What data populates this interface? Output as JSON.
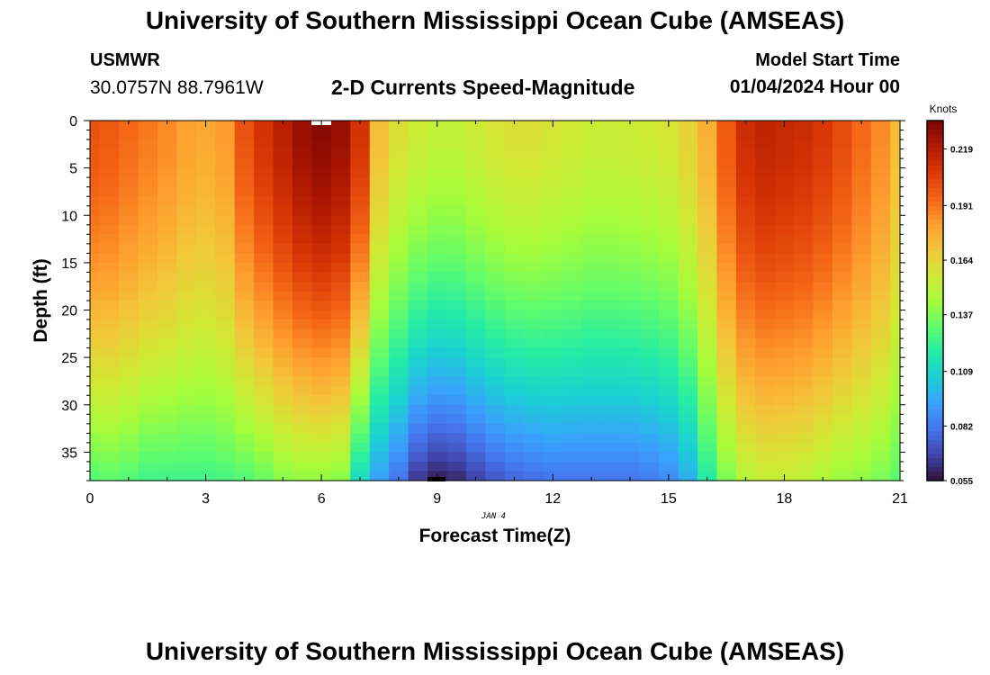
{
  "page": {
    "title": "University of Southern Mississippi Ocean Cube (AMSEAS)",
    "footer_title": "University of Southern Mississippi Ocean Cube (AMSEAS)",
    "station_id": "USMWR",
    "coordinates": "30.0757N  88.7961W",
    "subtitle": "2-D Currents Speed-Magnitude",
    "model_start_label": "Model Start Time",
    "model_start_value": "01/04/2024 Hour 00",
    "date_marker": "JAN 4"
  },
  "chart_data": {
    "type": "heatmap",
    "title": "2-D Currents Speed-Magnitude",
    "xlabel": "Forecast Time(Z)",
    "ylabel": "Depth (ft)",
    "xlim": [
      0,
      21
    ],
    "ylim": [
      0,
      38
    ],
    "y_inverted": true,
    "x_ticks": [
      0,
      3,
      6,
      9,
      12,
      15,
      18,
      21
    ],
    "y_ticks": [
      0,
      5,
      10,
      15,
      20,
      25,
      30,
      35
    ],
    "colorbar": {
      "label": "Knots",
      "ticks": [
        "0.219",
        "0.191",
        "0.164",
        "0.137",
        "0.109",
        "0.082",
        "0.055"
      ],
      "range": [
        0.055,
        0.233
      ],
      "colormap": "turbo",
      "stops": [
        "#30123b",
        "#4145ab",
        "#4675ed",
        "#39a2fc",
        "#1bcfd4",
        "#24eca6",
        "#61fc6c",
        "#a4fc3b",
        "#d1e834",
        "#f3c63a",
        "#fe9b2d",
        "#f36315",
        "#d93806",
        "#b11901",
        "#7a0403"
      ]
    },
    "columns": [
      {
        "t": 0.0,
        "surface": 0.2,
        "bottom": 0.128
      },
      {
        "t": 0.5,
        "surface": 0.198,
        "bottom": 0.13
      },
      {
        "t": 1.0,
        "surface": 0.194,
        "bottom": 0.128
      },
      {
        "t": 1.5,
        "surface": 0.19,
        "bottom": 0.124
      },
      {
        "t": 2.0,
        "surface": 0.186,
        "bottom": 0.124
      },
      {
        "t": 2.5,
        "surface": 0.18,
        "bottom": 0.124
      },
      {
        "t": 3.0,
        "surface": 0.178,
        "bottom": 0.124
      },
      {
        "t": 3.5,
        "surface": 0.182,
        "bottom": 0.126
      },
      {
        "t": 4.0,
        "surface": 0.2,
        "bottom": 0.128
      },
      {
        "t": 4.5,
        "surface": 0.21,
        "bottom": 0.132
      },
      {
        "t": 5.0,
        "surface": 0.218,
        "bottom": 0.138
      },
      {
        "t": 5.5,
        "surface": 0.226,
        "bottom": 0.14
      },
      {
        "t": 6.0,
        "surface": 0.23,
        "bottom": 0.14
      },
      {
        "t": 6.5,
        "surface": 0.226,
        "bottom": 0.138
      },
      {
        "t": 7.0,
        "surface": 0.21,
        "bottom": 0.11
      },
      {
        "t": 7.5,
        "surface": 0.172,
        "bottom": 0.092
      },
      {
        "t": 8.0,
        "surface": 0.16,
        "bottom": 0.08
      },
      {
        "t": 8.5,
        "surface": 0.155,
        "bottom": 0.064
      },
      {
        "t": 9.0,
        "surface": 0.152,
        "bottom": 0.058
      },
      {
        "t": 9.5,
        "surface": 0.152,
        "bottom": 0.06
      },
      {
        "t": 10.0,
        "surface": 0.155,
        "bottom": 0.066
      },
      {
        "t": 10.5,
        "surface": 0.158,
        "bottom": 0.072
      },
      {
        "t": 11.0,
        "surface": 0.16,
        "bottom": 0.076
      },
      {
        "t": 11.5,
        "surface": 0.16,
        "bottom": 0.078
      },
      {
        "t": 12.0,
        "surface": 0.158,
        "bottom": 0.08
      },
      {
        "t": 12.5,
        "surface": 0.156,
        "bottom": 0.08
      },
      {
        "t": 13.0,
        "surface": 0.154,
        "bottom": 0.08
      },
      {
        "t": 13.5,
        "surface": 0.154,
        "bottom": 0.08
      },
      {
        "t": 14.0,
        "surface": 0.155,
        "bottom": 0.08
      },
      {
        "t": 14.5,
        "surface": 0.156,
        "bottom": 0.082
      },
      {
        "t": 15.0,
        "surface": 0.158,
        "bottom": 0.086
      },
      {
        "t": 15.5,
        "surface": 0.165,
        "bottom": 0.096
      },
      {
        "t": 16.0,
        "surface": 0.176,
        "bottom": 0.118
      },
      {
        "t": 16.5,
        "surface": 0.198,
        "bottom": 0.136
      },
      {
        "t": 17.0,
        "surface": 0.212,
        "bottom": 0.148
      },
      {
        "t": 17.5,
        "surface": 0.216,
        "bottom": 0.152
      },
      {
        "t": 18.0,
        "surface": 0.214,
        "bottom": 0.152
      },
      {
        "t": 18.5,
        "surface": 0.212,
        "bottom": 0.15
      },
      {
        "t": 19.0,
        "surface": 0.208,
        "bottom": 0.146
      },
      {
        "t": 19.5,
        "surface": 0.202,
        "bottom": 0.142
      },
      {
        "t": 20.0,
        "surface": 0.194,
        "bottom": 0.14
      },
      {
        "t": 20.5,
        "surface": 0.186,
        "bottom": 0.136
      },
      {
        "t": 21.0,
        "surface": 0.172,
        "bottom": 0.13
      }
    ]
  }
}
